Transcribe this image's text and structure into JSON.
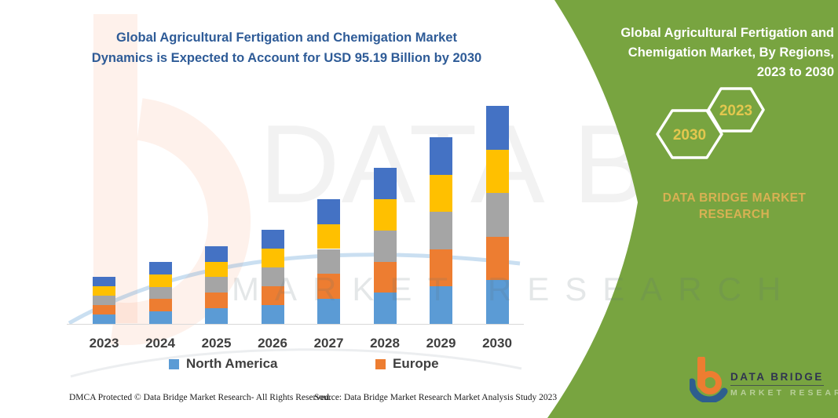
{
  "chart_title": {
    "line1": "Global Agricultural Fertigation and Chemigation Market",
    "line2": "Dynamics is Expected to Account for USD 95.19 Billion by 2030"
  },
  "chart_data": {
    "type": "bar",
    "stacked": true,
    "title": "Global Agricultural Fertigation and Chemigation Market Dynamics is Expected to Account for USD 95.19 Billion by 2030",
    "categories": [
      "2023",
      "2024",
      "2025",
      "2026",
      "2027",
      "2028",
      "2029",
      "2030"
    ],
    "series": [
      {
        "name": "North America",
        "color": "#5B9BD5",
        "values": [
          4.1,
          5.4,
          6.8,
          8.2,
          10.9,
          13.6,
          16.3,
          19.04
        ]
      },
      {
        "name": "Europe",
        "color": "#ED7D31",
        "values": [
          4.1,
          5.4,
          6.8,
          8.2,
          10.9,
          13.6,
          16.3,
          19.04
        ]
      },
      {
        "name": "unlabeled-gray",
        "color": "#A5A5A5",
        "values": [
          4.1,
          5.4,
          6.8,
          8.2,
          10.9,
          13.6,
          16.3,
          19.04
        ]
      },
      {
        "name": "unlabeled-yellow",
        "color": "#FFC000",
        "values": [
          4.1,
          5.4,
          6.8,
          8.2,
          10.9,
          13.6,
          16.3,
          19.04
        ]
      },
      {
        "name": "unlabeled-darkblue",
        "color": "#4472C4",
        "values": [
          4.1,
          5.4,
          6.8,
          8.2,
          10.9,
          13.6,
          16.3,
          19.04
        ]
      }
    ],
    "totals_estimated_usd_billion": [
      20.5,
      27.0,
      34.0,
      41.0,
      54.5,
      68.0,
      81.5,
      95.19
    ],
    "highlight_value": "USD 95.19 Billion by 2030",
    "ylim": [
      0,
      100
    ],
    "grid": false,
    "legend_position": "bottom",
    "legend_visible_entries": [
      "North America",
      "Europe"
    ]
  },
  "legend": {
    "items": [
      {
        "label": "North America",
        "color": "#5B9BD5"
      },
      {
        "label": "Europe",
        "color": "#ED7D31"
      }
    ]
  },
  "side_panel": {
    "title_line1": "Global Agricultural Fertigation and",
    "title_line2": "Chemigation Market, By Regions,",
    "title_line3": "2023 to 2030",
    "hexagon_back_label": "2030",
    "hexagon_front_label": "2023",
    "brand_line1": "DATA BRIDGE MARKET",
    "brand_line2": "RESEARCH",
    "background_color": "#78A440",
    "accent_text_color": "#D8B153"
  },
  "logo": {
    "name": "DATA BRIDGE",
    "subtitle": "MARKET RESEARCH"
  },
  "watermark": {
    "big_text": "DATA BRIDGE",
    "second_line": "MARKET RESEARCH"
  },
  "footer": {
    "left": "DMCA Protected © Data Bridge Market Research-  All Rights Reserved.",
    "right": "Source: Data Bridge Market Research  Market Analysis Study 2023"
  }
}
